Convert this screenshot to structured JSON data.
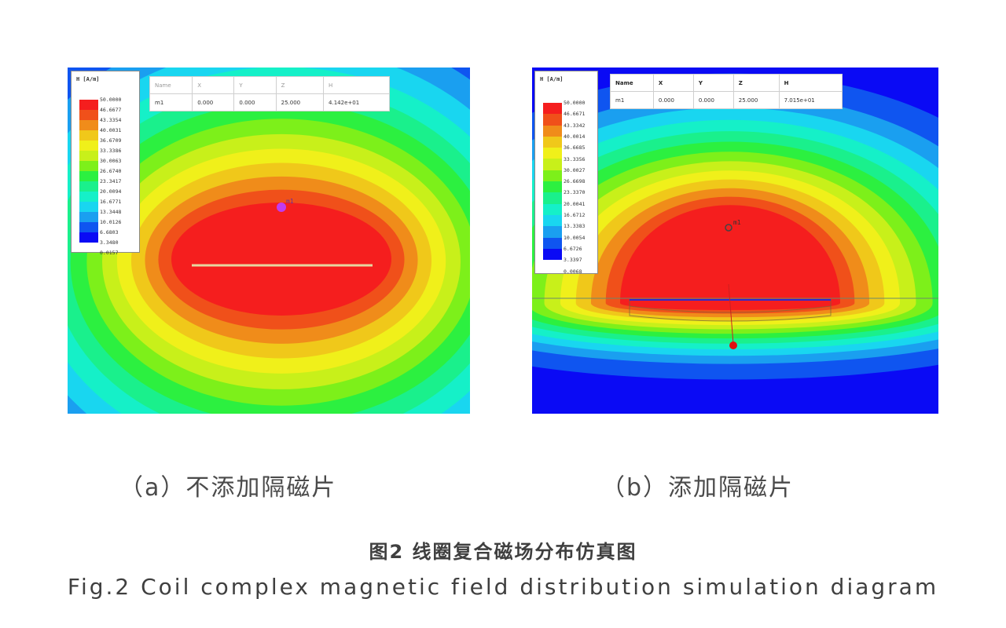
{
  "colors": {
    "field_levels": [
      "#0a0af5",
      "#0f55f0",
      "#1a9ff0",
      "#19d6f0",
      "#15f0c8",
      "#1af08c",
      "#2cf040",
      "#7df01a",
      "#c8f01a",
      "#f0f01a",
      "#f0c81a",
      "#f08c1a",
      "#f0501a",
      "#f51e1e"
    ]
  },
  "panel_a": {
    "legend": {
      "unit": "H [A/m]",
      "values": [
        "50.0000",
        "46.6677",
        "43.3354",
        "40.0031",
        "36.6709",
        "33.3386",
        "30.0063",
        "26.6740",
        "23.3417",
        "20.0094",
        "16.6771",
        "13.3448",
        "10.0126",
        "6.6803",
        "3.3480",
        "0.0157"
      ]
    },
    "table": {
      "headers": [
        "Name",
        "X",
        "Y",
        "Z",
        "H"
      ],
      "row": [
        "m1",
        "0.000",
        "0.000",
        "25.000",
        "4.142e+01"
      ]
    },
    "marker_label": "m1",
    "caption": "（a）不添加隔磁片"
  },
  "panel_b": {
    "legend": {
      "unit": "H [A/m]",
      "values": [
        "50.0000",
        "46.6671",
        "43.3342",
        "40.0014",
        "36.6685",
        "33.3356",
        "30.0027",
        "26.6698",
        "23.3370",
        "20.0041",
        "16.6712",
        "13.3383",
        "10.0054",
        "6.6726",
        "3.3397",
        "0.0068"
      ]
    },
    "table": {
      "headers": [
        "Name",
        "X",
        "Y",
        "Z",
        "H"
      ],
      "row": [
        "m1",
        "0.000",
        "0.000",
        "25.000",
        "7.015e+01"
      ]
    },
    "marker_label": "m1",
    "caption": "（b）添加隔磁片"
  },
  "figure_title_cn": "图2 线圈复合磁场分布仿真图",
  "figure_title_en": "Fig.2 Coil complex magnetic field distribution simulation diagram"
}
